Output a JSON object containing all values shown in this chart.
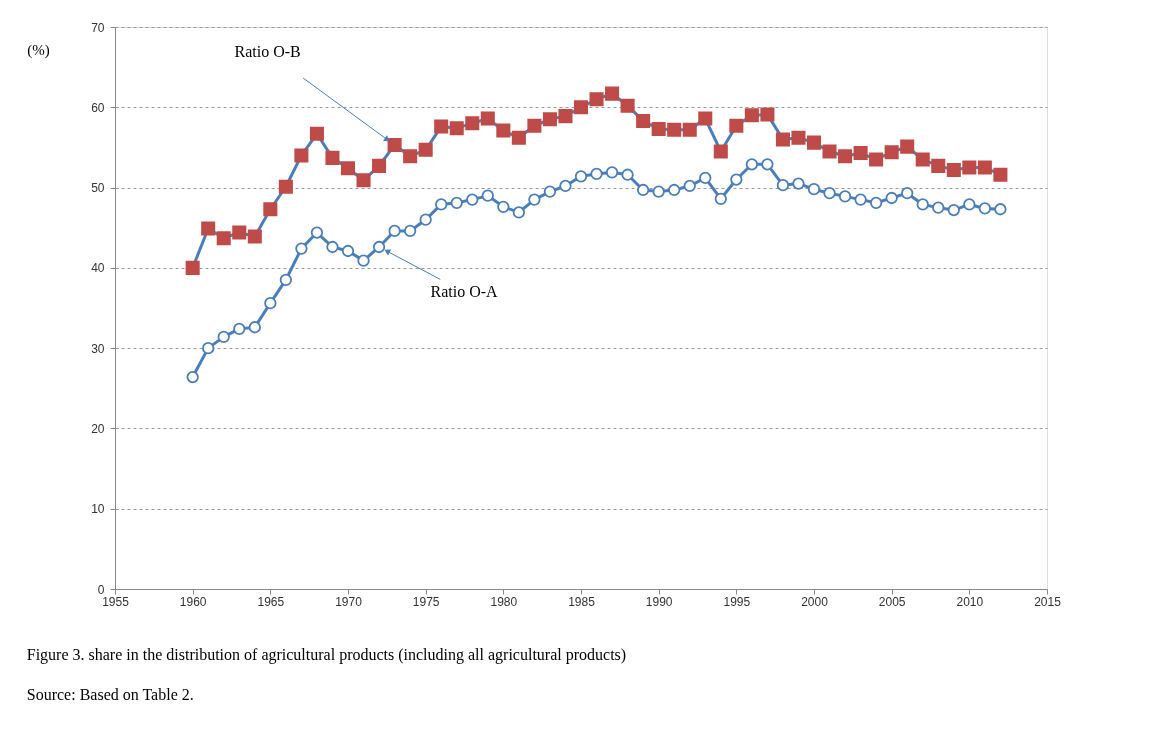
{
  "chart_data": {
    "type": "line",
    "title": "Figure 3. share in the distribution of agricultural products (including all agricultural products)",
    "ylabel": "(%)",
    "x": [
      1960,
      1961,
      1962,
      1963,
      1964,
      1965,
      1966,
      1967,
      1968,
      1969,
      1970,
      1971,
      1972,
      1973,
      1974,
      1975,
      1976,
      1977,
      1978,
      1979,
      1980,
      1981,
      1982,
      1983,
      1984,
      1985,
      1986,
      1987,
      1988,
      1989,
      1990,
      1991,
      1992,
      1993,
      1994,
      1995,
      1996,
      1997,
      1998,
      1999,
      2000,
      2001,
      2002,
      2003,
      2004,
      2005,
      2006,
      2007,
      2008,
      2009,
      2010,
      2011,
      2012
    ],
    "series": [
      {
        "name": "Ratio O-B",
        "color": "#4a7ebb",
        "marker": "square",
        "colors": [
          "#be4b48",
          "#be4b48",
          "#be4b48",
          "#be4b48",
          "#be4b48",
          "#be4b48",
          "#be4b48",
          "#be4b48",
          "#be4b48",
          "#be4b48",
          "#be4b48",
          "#be4b48",
          "#be4b48",
          "#be4b48",
          "#be4b48",
          "#be4b48",
          "#be4b48",
          "#be4b48",
          "#be4b48",
          "#be4b48",
          "#be4b48",
          "#be4b48",
          "#be4b48",
          "#be4b48",
          "#be4b48",
          "#be4b48",
          "#be4b48",
          "#be4b48",
          "#be4b48",
          "#be4b48",
          "#be4b48",
          "#be4b48",
          "#be4b48",
          "#be4b48",
          "#be4b48",
          "#be4b48",
          "#be4b48",
          "#be4b48",
          "#be4b48",
          "#be4b48",
          "#be4b48",
          "#be4b48",
          "#be4b48",
          "#be4b48",
          "#be4b48",
          "#be4b48",
          "#be4b48",
          "#be4b48",
          "#be4b48",
          "#be4b48",
          "#be4b48",
          "#be4b48",
          "#be4b48"
        ],
        "values": [
          40.0,
          44.9,
          43.7,
          44.4,
          43.9,
          47.3,
          50.1,
          54.0,
          56.7,
          53.7,
          52.4,
          50.9,
          52.7,
          55.3,
          53.9,
          54.7,
          57.6,
          57.4,
          58.0,
          58.6,
          57.1,
          56.2,
          57.7,
          58.5,
          58.9,
          60.0,
          61.0,
          61.7,
          60.2,
          58.3,
          57.3,
          57.2,
          57.2,
          58.6,
          54.5,
          57.7,
          59.0,
          59.1,
          56.0,
          56.2,
          55.6,
          54.5,
          53.9,
          54.3,
          53.5,
          54.4,
          55.1,
          53.5,
          52.7,
          52.2,
          52.5,
          52.5,
          51.6
        ]
      },
      {
        "name": "Ratio O-A",
        "color": "#4a7ebb",
        "marker": "circle",
        "values": [
          26.4,
          30.0,
          31.4,
          32.4,
          32.6,
          35.6,
          38.5,
          42.4,
          44.4,
          42.6,
          42.1,
          40.9,
          42.6,
          44.6,
          44.6,
          46.0,
          47.9,
          48.1,
          48.5,
          49.0,
          47.6,
          46.9,
          48.5,
          49.5,
          50.2,
          51.4,
          51.7,
          51.9,
          51.6,
          49.7,
          49.5,
          49.7,
          50.2,
          51.2,
          48.6,
          51.0,
          52.9,
          52.9,
          50.3,
          50.5,
          49.8,
          49.3,
          48.9,
          48.5,
          48.1,
          48.7,
          49.3,
          47.9,
          47.5,
          47.2,
          47.9,
          47.4,
          47.3
        ]
      }
    ],
    "annotations": [
      "Source: Based on Table 2."
    ],
    "xlim": [
      1955,
      2015
    ],
    "xticks": [
      1955,
      1960,
      1965,
      1970,
      1975,
      1980,
      1985,
      1990,
      1995,
      2000,
      2005,
      2010,
      2015
    ],
    "ylim": [
      0,
      70
    ],
    "yticks": [
      0,
      10,
      20,
      30,
      40,
      50,
      60,
      70
    ],
    "grid": "y",
    "line_style": "solid"
  }
}
